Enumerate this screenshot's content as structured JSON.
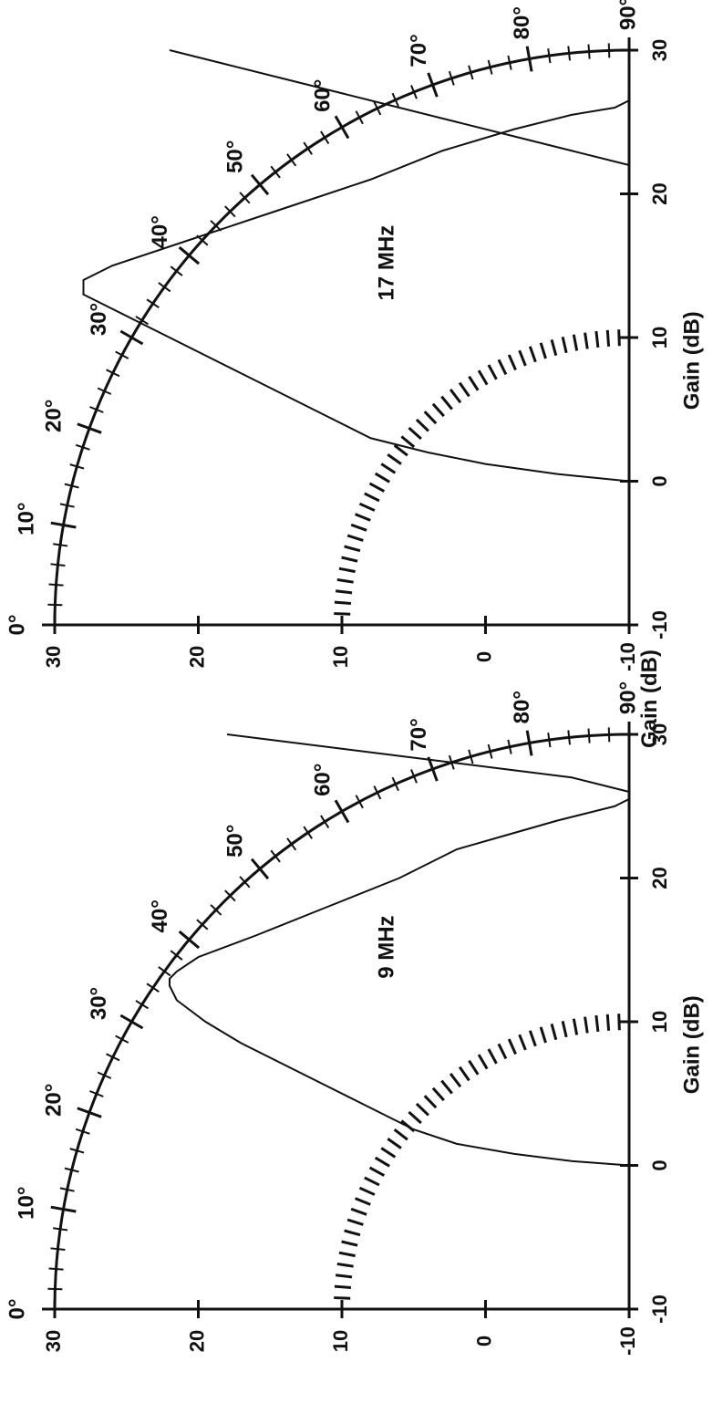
{
  "shared_ylabel": "Gain (dB)",
  "colors": {
    "ink": "#111111",
    "background": "#ffffff"
  },
  "chart_data": [
    {
      "type": "polar-elevation",
      "title": "9 MHz",
      "xlabel": "Gain (dB)",
      "ylabel": "Gain (dB)",
      "xlim": [
        -10,
        30
      ],
      "ylim": [
        -10,
        30
      ],
      "x_ticks": [
        "-10",
        "0",
        "10",
        "20",
        "30"
      ],
      "y_ticks": [
        "30",
        "20",
        "10",
        "0",
        "-10"
      ],
      "angle_labels": [
        "0°",
        "10°",
        "20°",
        "30°",
        "40°",
        "50°",
        "60°",
        "70°",
        "80°",
        "90°"
      ],
      "series": [
        {
          "points": [
            [
              0,
              -10
            ],
            [
              0.3,
              -6
            ],
            [
              0.8,
              -2
            ],
            [
              1.5,
              2
            ],
            [
              2.5,
              5
            ],
            [
              4,
              8
            ],
            [
              5.5,
              11
            ],
            [
              7,
              14
            ],
            [
              8.5,
              17
            ],
            [
              10,
              19.5
            ],
            [
              11.5,
              21.5
            ],
            [
              12.5,
              22
            ],
            [
              13,
              22
            ],
            [
              13.5,
              21.5
            ],
            [
              14.5,
              20
            ],
            [
              16,
              16
            ],
            [
              18,
              11
            ],
            [
              20,
              6
            ],
            [
              22,
              2
            ],
            [
              23,
              -1.5
            ],
            [
              24,
              -5
            ],
            [
              24.5,
              -7
            ],
            [
              25,
              -9
            ],
            [
              25.5,
              -10
            ],
            [
              30,
              -10
            ]
          ]
        },
        {
          "points": [
            [
              26,
              -10
            ],
            [
              26.5,
              -8
            ],
            [
              27,
              -6
            ],
            [
              27.5,
              -2
            ],
            [
              28,
              2
            ],
            [
              28.5,
              6
            ],
            [
              29,
              10
            ],
            [
              29.5,
              14
            ],
            [
              30,
              18
            ]
          ]
        }
      ]
    },
    {
      "type": "polar-elevation",
      "title": "17 MHz",
      "xlabel": "Gain (dB)",
      "ylabel": "",
      "xlim": [
        -10,
        30
      ],
      "ylim": [
        -10,
        30
      ],
      "x_ticks": [
        "-10",
        "0",
        "10",
        "20",
        "30"
      ],
      "y_ticks": [
        "30",
        "20",
        "10",
        "0",
        "-10"
      ],
      "angle_labels": [
        "0°",
        "10°",
        "20°",
        "30°",
        "40°",
        "50°",
        "60°",
        "70°",
        "80°",
        "90°"
      ],
      "series": [
        {
          "points": [
            [
              0,
              -10
            ],
            [
              0.5,
              -5
            ],
            [
              1.2,
              0
            ],
            [
              2,
              4
            ],
            [
              3,
              8
            ],
            [
              4.5,
              11
            ],
            [
              6,
              14
            ],
            [
              7.5,
              17
            ],
            [
              9,
              20
            ],
            [
              10.5,
              23
            ],
            [
              12,
              26
            ],
            [
              13,
              28
            ],
            [
              14,
              28
            ],
            [
              15,
              26
            ],
            [
              17,
              20
            ],
            [
              19,
              14
            ],
            [
              21,
              8
            ],
            [
              23,
              3
            ],
            [
              24.5,
              -2
            ],
            [
              25.5,
              -6
            ],
            [
              26,
              -9
            ],
            [
              26.5,
              -10
            ],
            [
              30,
              -10
            ]
          ]
        },
        {
          "points": [
            [
              22,
              -10
            ],
            [
              23,
              -6
            ],
            [
              24,
              -2
            ],
            [
              25,
              2
            ],
            [
              26,
              6
            ],
            [
              27,
              10
            ],
            [
              28,
              14
            ],
            [
              29,
              18
            ],
            [
              30,
              22
            ]
          ]
        }
      ]
    }
  ]
}
